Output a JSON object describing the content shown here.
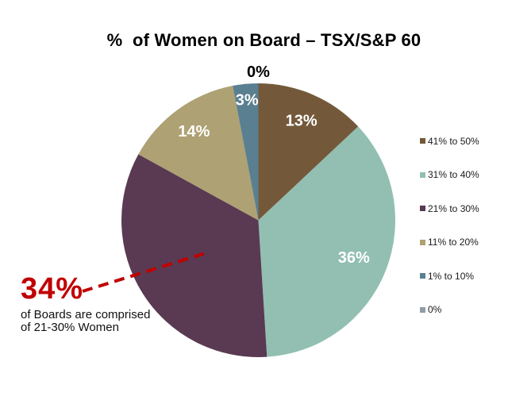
{
  "chart_data": {
    "type": "pie",
    "title": "%  of Women on Board – TSX/S&P 60",
    "legend_position": "right",
    "start_angle_deg": 0,
    "direction": "clockwise",
    "slices": [
      {
        "range": "41% to 50%",
        "value": 13,
        "label": "13%",
        "color": "#73593a",
        "label_color": "#ffffff",
        "label_r": 0.79
      },
      {
        "range": "31% to 40%",
        "value": 36,
        "label": "36%",
        "color": "#92bfb1",
        "label_color": "#ffffff",
        "label_r": 0.75
      },
      {
        "range": "21% to 30%",
        "value": 34,
        "label": "",
        "color": "#593a52",
        "label_color": "#ffffff",
        "label_r": 0.7
      },
      {
        "range": "11% to 20%",
        "value": 14,
        "label": "14%",
        "color": "#aea173",
        "label_color": "#ffffff",
        "label_r": 0.8
      },
      {
        "range": "1% to 10%",
        "value": 3,
        "label": "3%",
        "color": "#5a7f91",
        "label_color": "#ffffff",
        "label_r": 0.88
      },
      {
        "range": "0%",
        "value": 0,
        "label": "0%",
        "color": "#8e9dab",
        "label_color": "#000000",
        "label_r": 1.08
      }
    ]
  },
  "annotation": {
    "value": "34%",
    "line1": "of Boards are comprised",
    "line2": "of 21-30% Women",
    "color": "#c00000"
  }
}
